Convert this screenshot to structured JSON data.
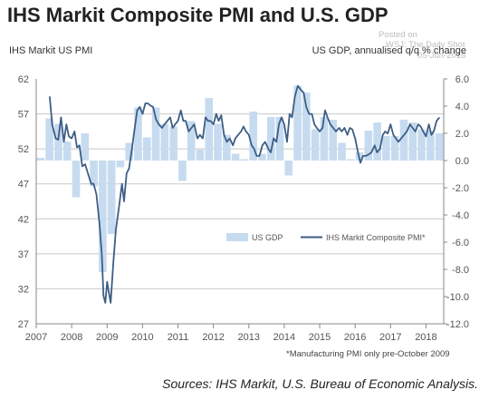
{
  "header": {
    "title": "IHS Markit Composite PMI and U.S. GDP",
    "watermark_posted": "Posted on",
    "watermark_source": "WSJ: The Daily Shot",
    "watermark_date": "05-Jun-2018"
  },
  "footer": {
    "source": "Sources: IHS Markit, U.S. Bureau of Economic Analysis."
  },
  "colors": {
    "bars": "#c6dbef",
    "line": "#3d5e85",
    "grid": "#c8c8c8"
  },
  "chart_data": {
    "type": "bar+line",
    "left_axis_title": "IHS Markit US PMI",
    "right_axis_title": "US GDP, annualised q/q % change",
    "left_axis": {
      "min": 27,
      "max": 62,
      "ticks": [
        "62",
        "57",
        "52",
        "47",
        "42",
        "37",
        "32",
        "27"
      ]
    },
    "right_axis": {
      "min": -12,
      "max": 6,
      "ticks": [
        "6.0",
        "4.0",
        "2.0",
        "0.0",
        "-2.0",
        "-4.0",
        "-6.0",
        "-8.0",
        "-10.0",
        "-12.0"
      ]
    },
    "x_axis": {
      "start": 2007,
      "end": 2018.5,
      "ticks": [
        "2007",
        "2008",
        "2009",
        "2010",
        "2011",
        "2012",
        "2013",
        "2014",
        "2015",
        "2016",
        "2017",
        "2018"
      ]
    },
    "legend": {
      "position": "lower-right",
      "items": [
        "US GDP",
        "IHS Markit Composite PMI*"
      ]
    },
    "note": "*Manufacturing PMI only pre-October 2009",
    "gdp_series": {
      "name": "US GDP",
      "quarters_start": "2007-Q1",
      "values": [
        0.2,
        3.1,
        2.7,
        1.4,
        -2.7,
        2.0,
        -1.9,
        -8.2,
        -5.4,
        -0.5,
        1.3,
        3.9,
        1.7,
        3.9,
        2.7,
        2.5,
        -1.5,
        2.9,
        0.8,
        4.6,
        2.7,
        1.9,
        0.5,
        0.1,
        3.6,
        0.5,
        3.2,
        3.2,
        -1.1,
        5.5,
        5.0,
        2.3,
        3.2,
        3.0,
        1.3,
        0.1,
        0.6,
        2.2,
        2.8,
        1.8,
        1.8,
        3.0,
        2.8,
        2.3,
        2.2,
        2.0
      ]
    },
    "pmi_series": {
      "name": "IHS Markit Composite PMI*",
      "points": [
        [
          2007.38,
          59.5
        ],
        [
          2007.45,
          55.5
        ],
        [
          2007.55,
          53.5
        ],
        [
          2007.62,
          53.3
        ],
        [
          2007.7,
          56.5
        ],
        [
          2007.78,
          53.0
        ],
        [
          2007.85,
          55.5
        ],
        [
          2007.92,
          53.8
        ],
        [
          2008.0,
          53.5
        ],
        [
          2008.08,
          54.5
        ],
        [
          2008.15,
          52.2
        ],
        [
          2008.22,
          52.5
        ],
        [
          2008.3,
          49.5
        ],
        [
          2008.38,
          49.8
        ],
        [
          2008.46,
          48.5
        ],
        [
          2008.55,
          47.0
        ],
        [
          2008.62,
          47.0
        ],
        [
          2008.7,
          45.5
        ],
        [
          2008.78,
          41.5
        ],
        [
          2008.85,
          37.0
        ],
        [
          2008.9,
          31.0
        ],
        [
          2008.95,
          30.0
        ],
        [
          2009.0,
          33.0
        ],
        [
          2009.05,
          31.5
        ],
        [
          2009.1,
          30.0
        ],
        [
          2009.18,
          36.0
        ],
        [
          2009.25,
          40.5
        ],
        [
          2009.33,
          43.5
        ],
        [
          2009.42,
          47.0
        ],
        [
          2009.48,
          44.5
        ],
        [
          2009.55,
          48.5
        ],
        [
          2009.62,
          49.2
        ],
        [
          2009.7,
          52.0
        ],
        [
          2009.78,
          55.0
        ],
        [
          2009.85,
          57.5
        ],
        [
          2009.92,
          58.0
        ],
        [
          2010.0,
          57.0
        ],
        [
          2010.08,
          58.5
        ],
        [
          2010.15,
          58.5
        ],
        [
          2010.22,
          58.2
        ],
        [
          2010.3,
          58.0
        ],
        [
          2010.38,
          56.2
        ],
        [
          2010.46,
          55.5
        ],
        [
          2010.55,
          55.0
        ],
        [
          2010.62,
          55.5
        ],
        [
          2010.7,
          56.0
        ],
        [
          2010.78,
          56.5
        ],
        [
          2010.85,
          55.0
        ],
        [
          2010.92,
          55.5
        ],
        [
          2011.0,
          56.0
        ],
        [
          2011.08,
          57.5
        ],
        [
          2011.15,
          56.0
        ],
        [
          2011.22,
          56.0
        ],
        [
          2011.3,
          54.5
        ],
        [
          2011.38,
          55.0
        ],
        [
          2011.46,
          55.5
        ],
        [
          2011.55,
          53.5
        ],
        [
          2011.62,
          54.0
        ],
        [
          2011.7,
          53.5
        ],
        [
          2011.78,
          56.5
        ],
        [
          2011.85,
          56.0
        ],
        [
          2011.92,
          56.0
        ],
        [
          2012.0,
          55.5
        ],
        [
          2012.08,
          57.0
        ],
        [
          2012.15,
          56.0
        ],
        [
          2012.22,
          56.8
        ],
        [
          2012.3,
          54.0
        ],
        [
          2012.38,
          53.0
        ],
        [
          2012.46,
          53.5
        ],
        [
          2012.55,
          52.5
        ],
        [
          2012.62,
          53.5
        ],
        [
          2012.7,
          54.0
        ],
        [
          2012.78,
          54.5
        ],
        [
          2012.85,
          55.2
        ],
        [
          2012.92,
          54.5
        ],
        [
          2013.0,
          54.0
        ],
        [
          2013.08,
          52.5
        ],
        [
          2013.15,
          52.0
        ],
        [
          2013.22,
          51.0
        ],
        [
          2013.3,
          51.0
        ],
        [
          2013.38,
          52.5
        ],
        [
          2013.46,
          53.0
        ],
        [
          2013.55,
          52.0
        ],
        [
          2013.62,
          51.5
        ],
        [
          2013.7,
          53.5
        ],
        [
          2013.78,
          53.0
        ],
        [
          2013.85,
          55.5
        ],
        [
          2013.92,
          56.5
        ],
        [
          2014.0,
          55.5
        ],
        [
          2014.08,
          53.0
        ],
        [
          2014.15,
          57.0
        ],
        [
          2014.22,
          56.5
        ],
        [
          2014.3,
          59.5
        ],
        [
          2014.38,
          61.0
        ],
        [
          2014.46,
          60.5
        ],
        [
          2014.55,
          60.0
        ],
        [
          2014.62,
          58.0
        ],
        [
          2014.7,
          57.0
        ],
        [
          2014.78,
          57.0
        ],
        [
          2014.85,
          55.5
        ],
        [
          2014.92,
          55.0
        ],
        [
          2015.0,
          54.5
        ],
        [
          2015.08,
          55.0
        ],
        [
          2015.15,
          57.5
        ],
        [
          2015.22,
          56.5
        ],
        [
          2015.3,
          55.5
        ],
        [
          2015.38,
          55.0
        ],
        [
          2015.46,
          54.5
        ],
        [
          2015.55,
          55.0
        ],
        [
          2015.62,
          54.5
        ],
        [
          2015.7,
          55.0
        ],
        [
          2015.78,
          54.0
        ],
        [
          2015.85,
          55.0
        ],
        [
          2015.92,
          54.8
        ],
        [
          2016.0,
          53.5
        ],
        [
          2016.08,
          51.5
        ],
        [
          2016.15,
          50.0
        ],
        [
          2016.22,
          51.0
        ],
        [
          2016.3,
          51.0
        ],
        [
          2016.38,
          51.2
        ],
        [
          2016.46,
          51.5
        ],
        [
          2016.55,
          52.5
        ],
        [
          2016.62,
          51.5
        ],
        [
          2016.7,
          52.0
        ],
        [
          2016.78,
          54.0
        ],
        [
          2016.85,
          54.5
        ],
        [
          2016.92,
          54.2
        ],
        [
          2017.0,
          55.5
        ],
        [
          2017.08,
          54.0
        ],
        [
          2017.15,
          53.5
        ],
        [
          2017.22,
          53.0
        ],
        [
          2017.3,
          53.5
        ],
        [
          2017.38,
          54.0
        ],
        [
          2017.46,
          54.5
        ],
        [
          2017.55,
          55.5
        ],
        [
          2017.62,
          55.0
        ],
        [
          2017.7,
          54.5
        ],
        [
          2017.78,
          55.5
        ],
        [
          2017.85,
          55.2
        ],
        [
          2017.92,
          54.5
        ],
        [
          2018.0,
          53.8
        ],
        [
          2018.08,
          55.5
        ],
        [
          2018.15,
          54.0
        ],
        [
          2018.22,
          54.5
        ],
        [
          2018.3,
          56.0
        ],
        [
          2018.38,
          56.5
        ]
      ]
    }
  }
}
